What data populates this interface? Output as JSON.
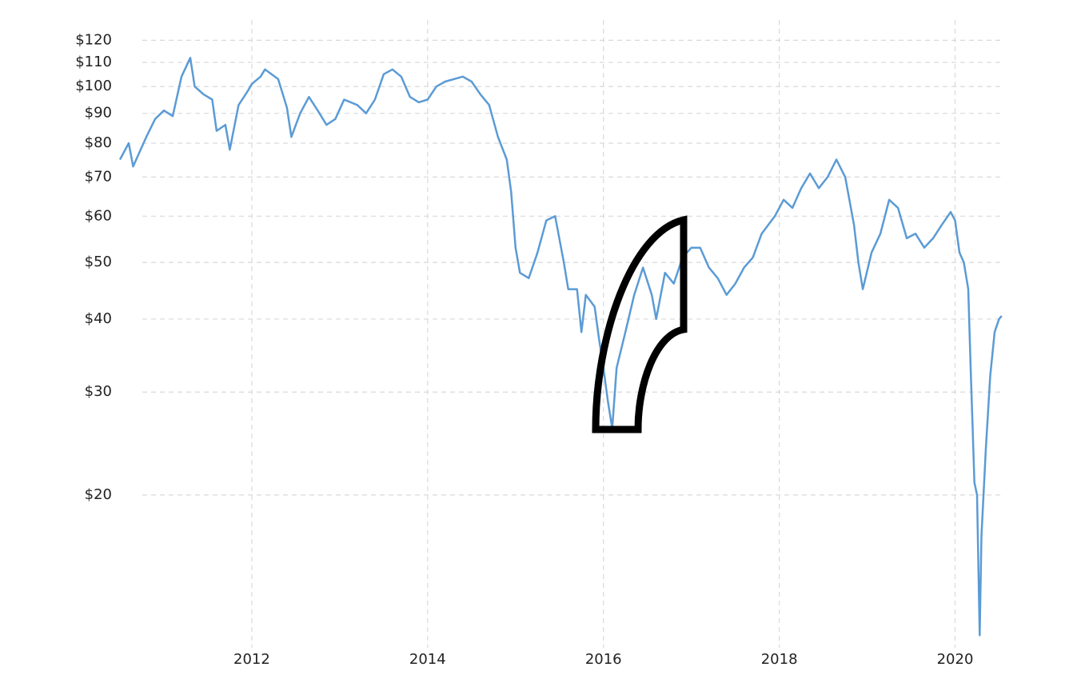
{
  "chart_data": {
    "type": "line",
    "ylog": true,
    "grid": true,
    "x": [
      2010.5,
      2010.6,
      2010.65,
      2010.8,
      2010.9,
      2011.0,
      2011.1,
      2011.2,
      2011.3,
      2011.35,
      2011.45,
      2011.55,
      2011.6,
      2011.7,
      2011.75,
      2011.85,
      2011.95,
      2012.0,
      2012.1,
      2012.15,
      2012.3,
      2012.4,
      2012.45,
      2012.55,
      2012.65,
      2012.75,
      2012.85,
      2012.95,
      2013.05,
      2013.2,
      2013.3,
      2013.4,
      2013.5,
      2013.6,
      2013.7,
      2013.8,
      2013.9,
      2014.0,
      2014.1,
      2014.2,
      2014.4,
      2014.5,
      2014.6,
      2014.7,
      2014.8,
      2014.9,
      2014.95,
      2015.0,
      2015.05,
      2015.15,
      2015.25,
      2015.35,
      2015.45,
      2015.55,
      2015.6,
      2015.7,
      2015.75,
      2015.8,
      2015.9,
      2015.95,
      2016.0,
      2016.05,
      2016.1,
      2016.15,
      2016.25,
      2016.35,
      2016.45,
      2016.55,
      2016.6,
      2016.7,
      2016.8,
      2016.9,
      2017.0,
      2017.1,
      2017.2,
      2017.3,
      2017.4,
      2017.5,
      2017.6,
      2017.7,
      2017.8,
      2017.95,
      2018.05,
      2018.15,
      2018.25,
      2018.35,
      2018.45,
      2018.55,
      2018.65,
      2018.75,
      2018.85,
      2018.9,
      2018.95,
      2019.05,
      2019.15,
      2019.25,
      2019.35,
      2019.45,
      2019.55,
      2019.65,
      2019.75,
      2019.85,
      2019.95,
      2020.0,
      2020.05,
      2020.1,
      2020.15,
      2020.18,
      2020.2,
      2020.22,
      2020.25,
      2020.28,
      2020.3,
      2020.35,
      2020.4,
      2020.45,
      2020.5,
      2020.53
    ],
    "series": [
      {
        "color": "#5b9bd5",
        "values": [
          75,
          80,
          73,
          82,
          88,
          91,
          89,
          104,
          112,
          100,
          97,
          95,
          84,
          86,
          78,
          93,
          98,
          101,
          104,
          107,
          103,
          92,
          82,
          90,
          96,
          91,
          86,
          88,
          95,
          93,
          90,
          95,
          105,
          107,
          104,
          96,
          94,
          95,
          100,
          102,
          104,
          102,
          97,
          93,
          82,
          75,
          66,
          53,
          48,
          47,
          52,
          59,
          60,
          50,
          45,
          45,
          38,
          44,
          42,
          37,
          33,
          29,
          26,
          33,
          38,
          44,
          49,
          44,
          40,
          48,
          46,
          51,
          53,
          53,
          49,
          47,
          44,
          46,
          49,
          51,
          56,
          60,
          64,
          62,
          67,
          71,
          67,
          70,
          75,
          70,
          58,
          50,
          45,
          52,
          56,
          64,
          62,
          55,
          56,
          53,
          55,
          58,
          61,
          59,
          52,
          50,
          45,
          32,
          26,
          21,
          20,
          11.5,
          17,
          24,
          32,
          38,
          40,
          40.5
        ]
      }
    ],
    "xlim": [
      2010.5,
      2020.55
    ],
    "xticks": [
      2012,
      2014,
      2016,
      2018,
      2020
    ],
    "ylim": [
      11.3,
      130
    ],
    "yticks": [
      {
        "value": 20,
        "label": "$20"
      },
      {
        "value": 30,
        "label": "$30"
      },
      {
        "value": 40,
        "label": "$40"
      },
      {
        "value": 50,
        "label": "$50"
      },
      {
        "value": 60,
        "label": "$60"
      },
      {
        "value": 70,
        "label": "$70"
      },
      {
        "value": 80,
        "label": "$80"
      },
      {
        "value": 90,
        "label": "$90"
      },
      {
        "value": 100,
        "label": "$100"
      },
      {
        "value": 110,
        "label": "$110"
      },
      {
        "value": 120,
        "label": "$120"
      }
    ]
  }
}
